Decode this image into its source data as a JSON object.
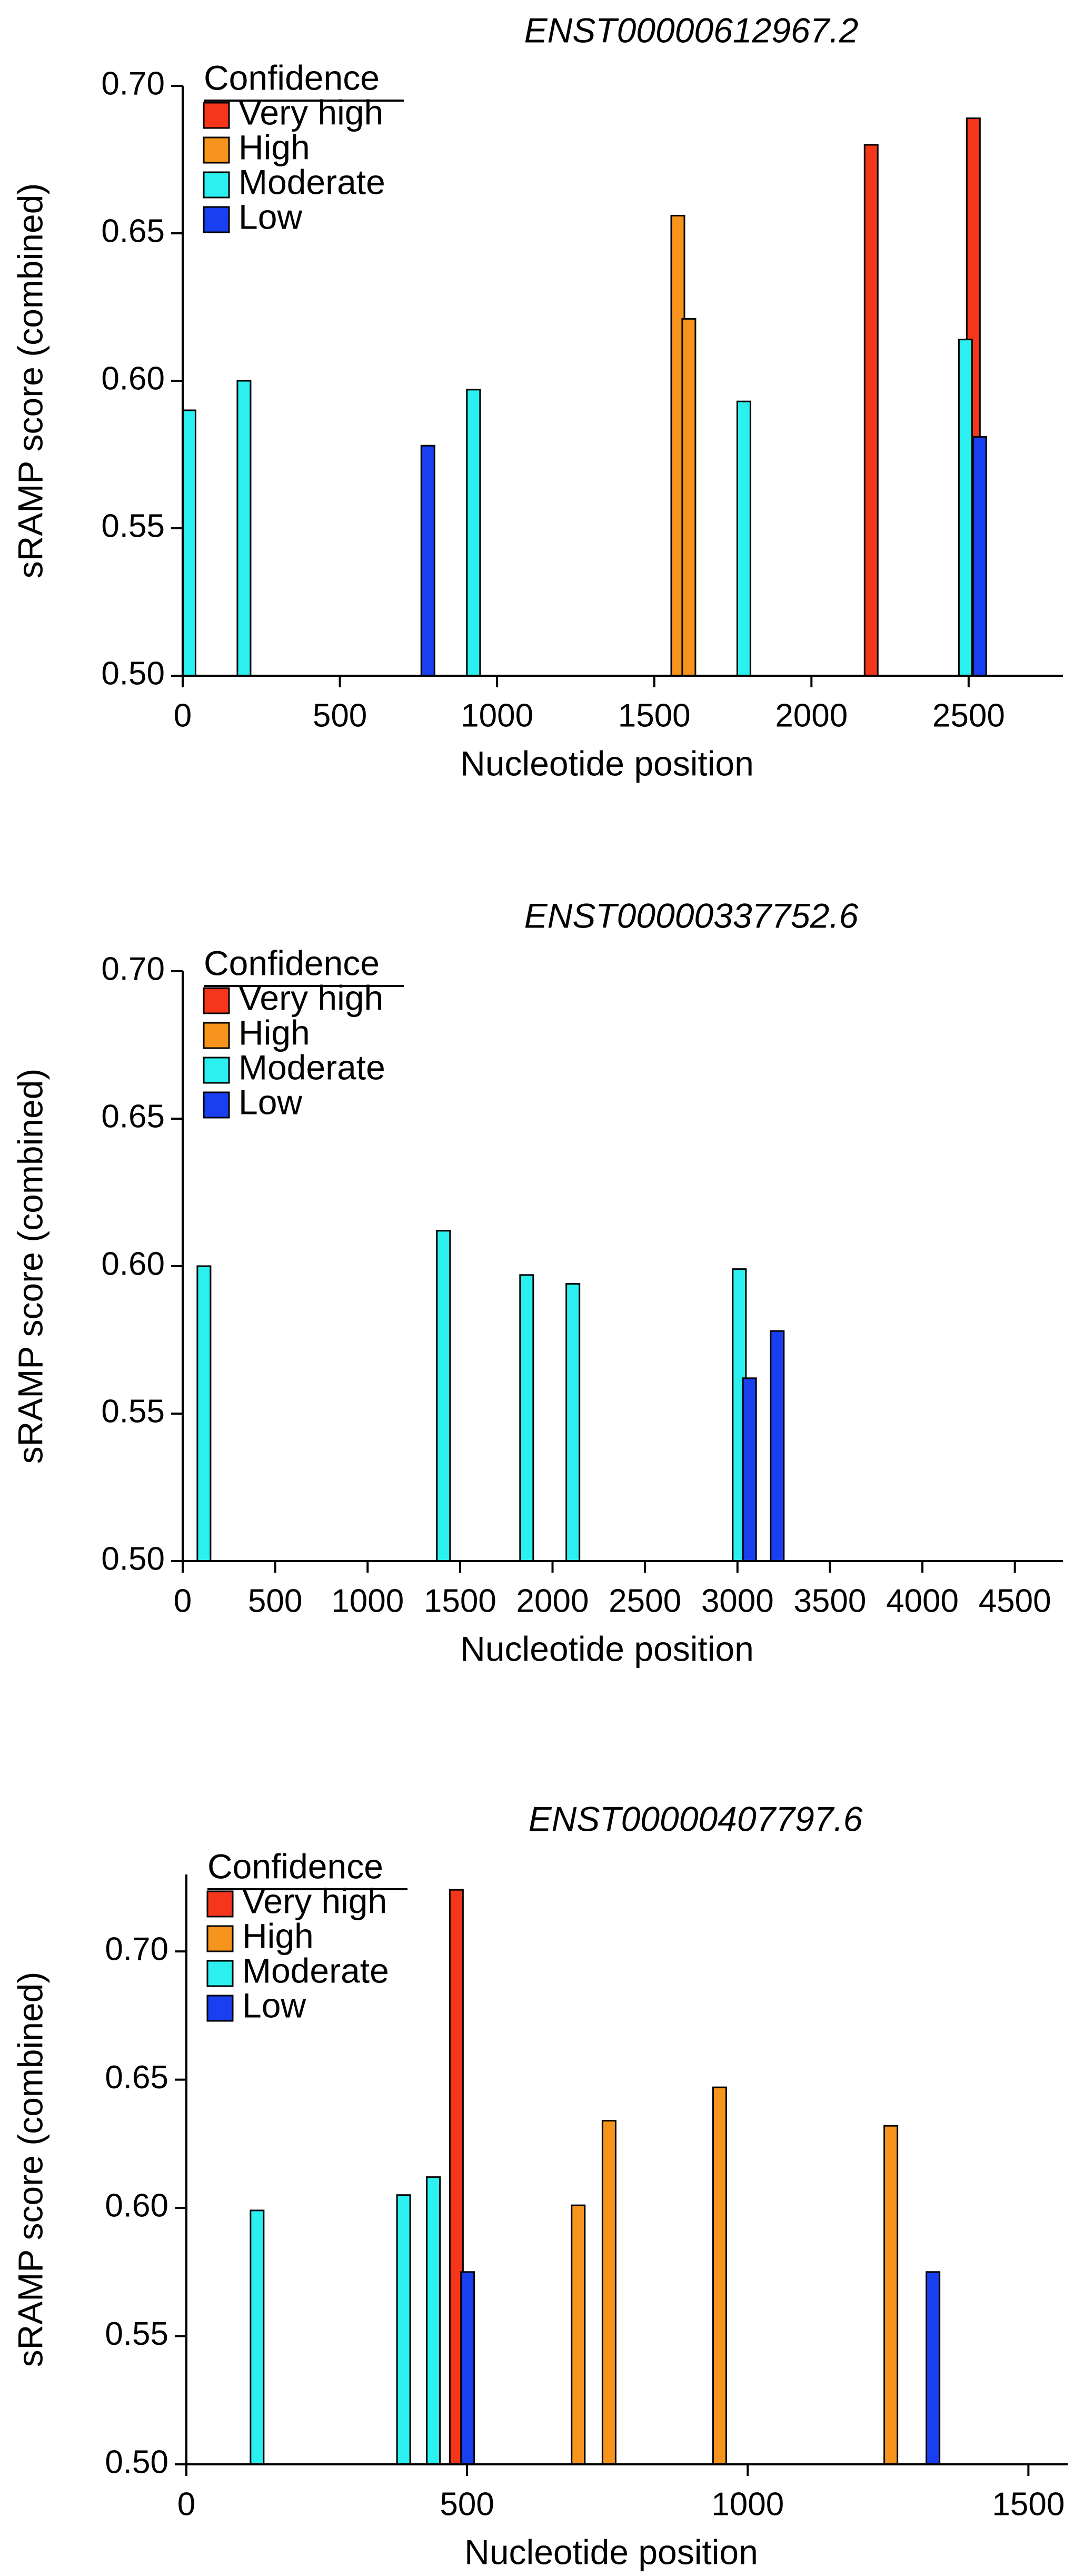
{
  "chart_data": [
    {
      "type": "bar",
      "title": "ENST00000612967.2",
      "xlabel": "Nucleotide position",
      "ylabel": "sRAMP score (combined)",
      "legend_title": "Confidence",
      "xlim": [
        0,
        2800
      ],
      "xticks": [
        0,
        500,
        1000,
        1500,
        2000,
        2500
      ],
      "ylim": [
        0.5,
        0.7
      ],
      "yticks": [
        {
          "value": 0.5,
          "label": "0.50"
        },
        0.55,
        {
          "value": 0.6,
          "label": "0.60"
        },
        0.65,
        {
          "value": 0.7,
          "label": "0.70"
        }
      ],
      "series": [
        {
          "name": "Very high",
          "color": "#f5361a",
          "x": [
            2190,
            2515
          ],
          "values": [
            0.68,
            0.689
          ]
        },
        {
          "name": "High",
          "color": "#f7941d",
          "x": [
            1575,
            1610
          ],
          "values": [
            0.656,
            0.621
          ]
        },
        {
          "name": "Moderate",
          "color": "#2cf0f0",
          "x": [
            20,
            195,
            925,
            1785,
            2490
          ],
          "values": [
            0.59,
            0.6,
            0.597,
            0.593,
            0.614
          ]
        },
        {
          "name": "Low",
          "color": "#1a3ff0",
          "x": [
            780,
            2535
          ],
          "values": [
            0.578,
            0.581
          ]
        }
      ]
    },
    {
      "type": "bar",
      "title": "ENST00000337752.6",
      "xlabel": "Nucleotide position",
      "ylabel": "sRAMP score (combined)",
      "legend_title": "Confidence",
      "xlim": [
        0,
        4760
      ],
      "xticks": [
        0,
        500,
        1000,
        1500,
        2000,
        2500,
        3000,
        3500,
        4000,
        4500
      ],
      "ylim": [
        0.5,
        0.7
      ],
      "yticks": [
        {
          "value": 0.5,
          "label": "0.50"
        },
        0.55,
        {
          "value": 0.6,
          "label": "0.60"
        },
        0.65,
        {
          "value": 0.7,
          "label": "0.70"
        }
      ],
      "series": [
        {
          "name": "Very high",
          "color": "#f5361a",
          "x": [],
          "values": []
        },
        {
          "name": "High",
          "color": "#f7941d",
          "x": [],
          "values": []
        },
        {
          "name": "Moderate",
          "color": "#2cf0f0",
          "x": [
            115,
            1410,
            1860,
            2110,
            3010
          ],
          "values": [
            0.6,
            0.612,
            0.597,
            0.594,
            0.599
          ]
        },
        {
          "name": "Low",
          "color": "#1a3ff0",
          "x": [
            3065,
            3215
          ],
          "values": [
            0.562,
            0.578
          ]
        }
      ]
    },
    {
      "type": "bar",
      "title": "ENST00000407797.6",
      "xlabel": "Nucleotide position",
      "ylabel": "sRAMP score (combined)",
      "legend_title": "Confidence",
      "xlim": [
        0,
        1570
      ],
      "xticks": [
        0,
        500,
        1000,
        1500
      ],
      "ylim": [
        0.5,
        0.73
      ],
      "yticks": [
        {
          "value": 0.5,
          "label": "0.50"
        },
        0.55,
        {
          "value": 0.6,
          "label": "0.60"
        },
        0.65,
        {
          "value": 0.7,
          "label": "0.70"
        }
      ],
      "series": [
        {
          "name": "Very high",
          "color": "#f5361a",
          "x": [
            481
          ],
          "values": [
            0.724
          ]
        },
        {
          "name": "High",
          "color": "#f7941d",
          "x": [
            698,
            753,
            950,
            1255
          ],
          "values": [
            0.601,
            0.634,
            0.647,
            0.632
          ]
        },
        {
          "name": "Moderate",
          "color": "#2cf0f0",
          "x": [
            126,
            387,
            440
          ],
          "values": [
            0.599,
            0.605,
            0.612
          ]
        },
        {
          "name": "Low",
          "color": "#1a3ff0",
          "x": [
            501,
            1330
          ],
          "values": [
            0.575,
            0.575
          ]
        }
      ]
    }
  ]
}
